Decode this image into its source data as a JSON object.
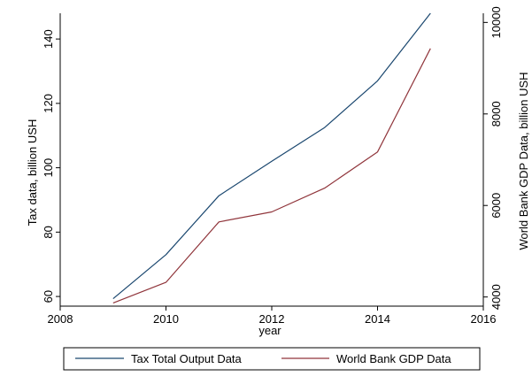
{
  "chart_data": {
    "type": "line",
    "title": "",
    "xlabel": "year",
    "ylabel_left": "Tax data, billion USH",
    "ylabel_right": "World Bank GDP Data, billion USH",
    "xlim": [
      2008,
      2016
    ],
    "xticks": [
      2008,
      2010,
      2012,
      2014,
      2016
    ],
    "ylim_left": [
      57,
      148
    ],
    "yticks_left": [
      60,
      80,
      100,
      120,
      140
    ],
    "ylim_right": [
      3800,
      10200
    ],
    "yticks_right": [
      4000,
      6000,
      8000,
      10000
    ],
    "grid": false,
    "legend_position": "bottom",
    "series": [
      {
        "name": "Tax Total Output Data",
        "axis": "left",
        "color": "#1a476f",
        "x": [
          2009,
          2010,
          2011,
          2012,
          2013,
          2014,
          2015
        ],
        "values": [
          59.3,
          73,
          91.3,
          102,
          112.5,
          127,
          148
        ]
      },
      {
        "name": "World Bank GDP Data",
        "axis": "right",
        "color": "#90353b",
        "x": [
          2009,
          2010,
          2011,
          2012,
          2013,
          2014,
          2015
        ],
        "values": [
          3870,
          4320,
          5640,
          5860,
          6380,
          7170,
          9430
        ]
      }
    ]
  }
}
